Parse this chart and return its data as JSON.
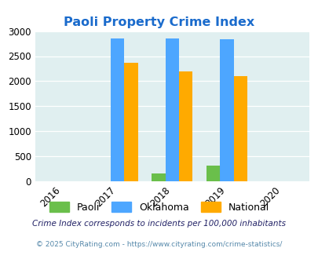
{
  "title": "Paoli Property Crime Index",
  "years": [
    2016,
    2017,
    2018,
    2019,
    2020
  ],
  "bar_years": [
    2017,
    2018,
    2019
  ],
  "paoli": [
    0,
    155,
    320
  ],
  "oklahoma": [
    2860,
    2860,
    2830
  ],
  "national": [
    2360,
    2190,
    2100
  ],
  "paoli_color": "#6abf4b",
  "oklahoma_color": "#4da6ff",
  "national_color": "#ffaa00",
  "bg_color": "#e0eff0",
  "title_color": "#1a6bcc",
  "ylim": [
    0,
    3000
  ],
  "yticks": [
    0,
    500,
    1000,
    1500,
    2000,
    2500,
    3000
  ],
  "bar_width": 0.25,
  "footnote1": "Crime Index corresponds to incidents per 100,000 inhabitants",
  "footnote2": "© 2025 CityRating.com - https://www.cityrating.com/crime-statistics/",
  "legend_labels": [
    "Paoli",
    "Oklahoma",
    "National"
  ],
  "year_positions": {
    "2016": 0,
    "2017": 1,
    "2018": 2,
    "2019": 3,
    "2020": 4
  }
}
